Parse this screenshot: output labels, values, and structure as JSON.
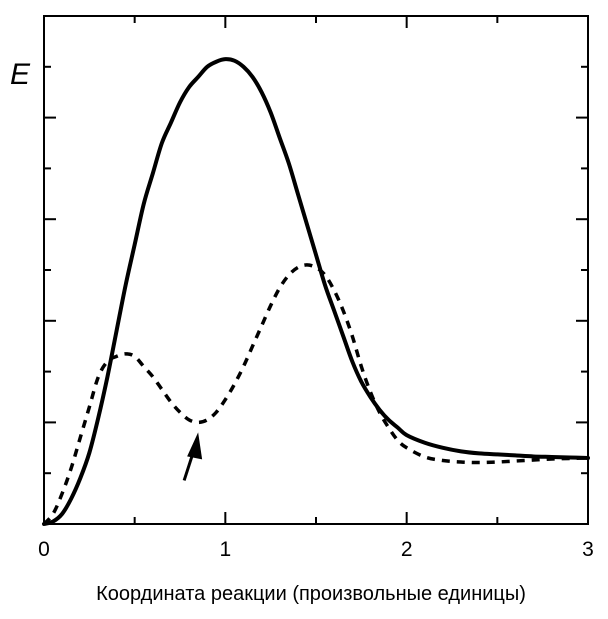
{
  "chart_data": {
    "type": "line",
    "title": "",
    "xlabel": "Координата реакции (произвольные единицы)",
    "ylabel": "E",
    "xlim": [
      0,
      3
    ],
    "ylim": [
      0,
      1
    ],
    "x_ticks": [
      "0",
      "1",
      "2",
      "3"
    ],
    "y_ticks_labeled": false,
    "grid": false,
    "legend": "none",
    "series": [
      {
        "style": "solid",
        "color": "#000000",
        "x": [
          0,
          0.05,
          0.1,
          0.15,
          0.2,
          0.25,
          0.3,
          0.35,
          0.4,
          0.45,
          0.5,
          0.55,
          0.6,
          0.65,
          0.7,
          0.75,
          0.8,
          0.85,
          0.9,
          0.95,
          1.0,
          1.05,
          1.1,
          1.15,
          1.2,
          1.25,
          1.3,
          1.35,
          1.4,
          1.45,
          1.5,
          1.55,
          1.6,
          1.65,
          1.7,
          1.75,
          1.8,
          1.85,
          1.9,
          1.95,
          2.0,
          2.1,
          2.2,
          2.3,
          2.4,
          2.5,
          2.6,
          2.7,
          2.8,
          2.9,
          3.0
        ],
        "values": [
          0,
          0.005,
          0.02,
          0.05,
          0.09,
          0.14,
          0.21,
          0.29,
          0.38,
          0.47,
          0.55,
          0.63,
          0.69,
          0.75,
          0.79,
          0.83,
          0.86,
          0.88,
          0.9,
          0.91,
          0.915,
          0.912,
          0.9,
          0.88,
          0.85,
          0.81,
          0.76,
          0.71,
          0.65,
          0.59,
          0.53,
          0.47,
          0.42,
          0.37,
          0.32,
          0.28,
          0.25,
          0.225,
          0.205,
          0.19,
          0.175,
          0.16,
          0.15,
          0.143,
          0.139,
          0.137,
          0.135,
          0.133,
          0.132,
          0.131,
          0.13
        ]
      },
      {
        "style": "dashed",
        "color": "#000000",
        "x": [
          0,
          0.05,
          0.1,
          0.15,
          0.2,
          0.25,
          0.3,
          0.35,
          0.4,
          0.45,
          0.5,
          0.55,
          0.6,
          0.65,
          0.7,
          0.75,
          0.8,
          0.85,
          0.9,
          0.95,
          1.0,
          1.05,
          1.1,
          1.15,
          1.2,
          1.25,
          1.3,
          1.35,
          1.4,
          1.45,
          1.5,
          1.55,
          1.6,
          1.65,
          1.7,
          1.75,
          1.8,
          1.85,
          1.9,
          1.95,
          2.0,
          2.1,
          2.2,
          2.3,
          2.4,
          2.5,
          2.6,
          2.7,
          2.8,
          2.9,
          3.0
        ],
        "values": [
          0,
          0.02,
          0.06,
          0.11,
          0.17,
          0.23,
          0.29,
          0.32,
          0.33,
          0.335,
          0.33,
          0.31,
          0.29,
          0.265,
          0.24,
          0.22,
          0.205,
          0.2,
          0.205,
          0.22,
          0.245,
          0.275,
          0.31,
          0.35,
          0.39,
          0.43,
          0.465,
          0.49,
          0.505,
          0.51,
          0.505,
          0.49,
          0.46,
          0.42,
          0.37,
          0.31,
          0.26,
          0.22,
          0.19,
          0.165,
          0.15,
          0.132,
          0.125,
          0.122,
          0.121,
          0.122,
          0.124,
          0.126,
          0.128,
          0.129,
          0.13
        ]
      }
    ],
    "annotations": [
      {
        "type": "arrow",
        "points_to_x": 0.85,
        "points_to_y": 0.2
      }
    ]
  }
}
